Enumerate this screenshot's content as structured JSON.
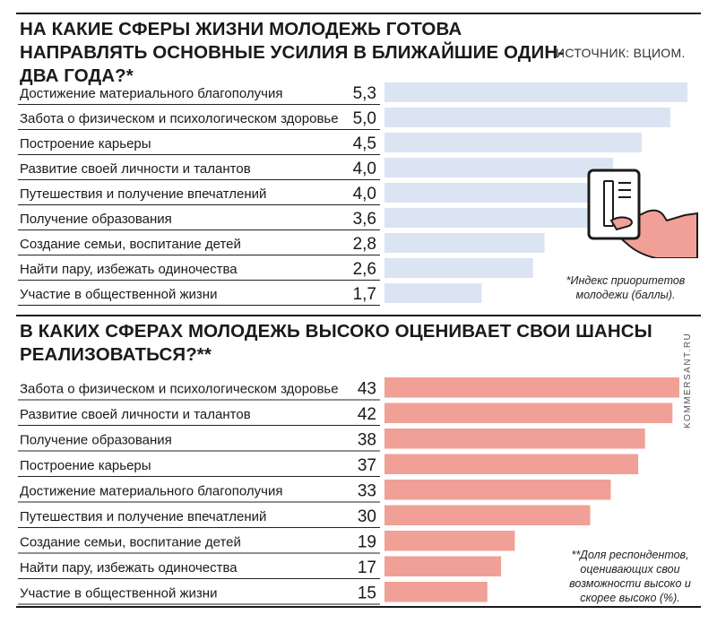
{
  "chart_data": [
    {
      "type": "bar",
      "orientation": "horizontal",
      "title": "НА КАКИЕ СФЕРЫ ЖИЗНИ МОЛОДЕЖЬ ГОТОВА НАПРАВЛЯТЬ ОСНОВНЫЕ УСИЛИЯ В БЛИЖАЙШИЕ ОДИН-ДВА ГОДА?*",
      "source": "ИСТОЧНИК: ВЦИОМ.",
      "categories": [
        "Достижение материального благополучия",
        "Забота о физическом и психологическом здоровье",
        "Построение карьеры",
        "Развитие своей личности и талантов",
        "Путешествия и получение впечатлений",
        "Получение образования",
        "Создание семьи, воспитание детей",
        "Найти пару, избежать одиночества",
        "Участие в общественной жизни"
      ],
      "values": [
        5.3,
        5.0,
        4.5,
        4.0,
        4.0,
        3.6,
        2.8,
        2.6,
        1.7
      ],
      "value_labels": [
        "5,3",
        "5,0",
        "4,5",
        "4,0",
        "4,0",
        "3,6",
        "2,8",
        "2,6",
        "1,7"
      ],
      "xlim": [
        0,
        5.3
      ],
      "bar_color": "#dbe4f2",
      "note": "*Индекс приоритетов молодежи (баллы)."
    },
    {
      "type": "bar",
      "orientation": "horizontal",
      "title": "В КАКИХ СФЕРАХ МОЛОДЕЖЬ ВЫСОКО ОЦЕНИВАЕТ СВОИ ШАНСЫ РЕАЛИЗОВАТЬСЯ?**",
      "categories": [
        "Забота о физическом и психологическом здоровье",
        "Развитие своей личности и талантов",
        "Получение образования",
        "Построение карьеры",
        "Достижение материального благополучия",
        "Путешествия и получение впечатлений",
        "Создание семьи, воспитание детей",
        "Найти пару, избежать одиночества",
        "Участие в общественной жизни"
      ],
      "values": [
        43,
        42,
        38,
        37,
        33,
        30,
        19,
        17,
        15
      ],
      "value_labels": [
        "43",
        "42",
        "38",
        "37",
        "33",
        "30",
        "19",
        "17",
        "15"
      ],
      "xlim": [
        0,
        43
      ],
      "bar_color": "#f0a096",
      "note": "**Доля респондентов, оценивающих свои возможности высоко и скорее высоко (%)."
    }
  ],
  "watermark": "KOMMERSANT.RU",
  "colors": {
    "illustration_accent": "#f0a096",
    "text": "#1a1a1a"
  }
}
